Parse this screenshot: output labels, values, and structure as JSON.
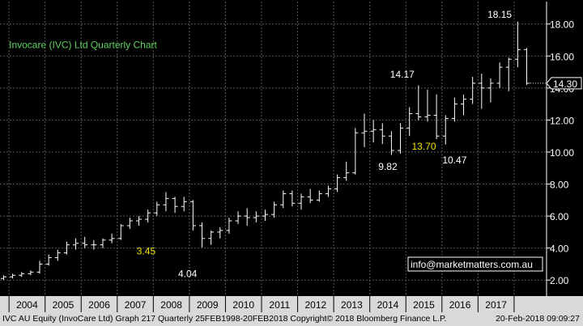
{
  "chart_data": {
    "type": "ohlc",
    "title": "Invocare (IVC) Ltd Quarterly Chart",
    "ylim": [
      1.0,
      19.4
    ],
    "xlim": [
      2003.25,
      2018.4
    ],
    "yticks": [
      2.0,
      4.0,
      6.0,
      8.0,
      10.0,
      12.0,
      14.0,
      16.0,
      18.0
    ],
    "ytick_labels": [
      "2.00",
      "4.00",
      "6.00",
      "8.00",
      "10.00",
      "12.00",
      "14.00",
      "16.00",
      "18.00"
    ],
    "year_labels": [
      "2004",
      "2005",
      "2006",
      "2007",
      "2008",
      "2009",
      "2010",
      "2011",
      "2012",
      "2013",
      "2014",
      "2015",
      "2016",
      "2017"
    ],
    "year_label_x": [
      2004,
      2005,
      2006,
      2007,
      2008,
      2009,
      2010,
      2011,
      2012,
      2013,
      2014,
      2015,
      2016,
      2017
    ],
    "grid": true,
    "series": [
      {
        "bars": [
          {
            "x": 2003.35,
            "o": 2.1,
            "h": 2.3,
            "l": 2.0,
            "c": 2.2
          },
          {
            "x": 2003.6,
            "o": 2.2,
            "h": 2.4,
            "l": 2.1,
            "c": 2.3
          },
          {
            "x": 2003.85,
            "o": 2.3,
            "h": 2.5,
            "l": 2.2,
            "c": 2.4
          },
          {
            "x": 2004.1,
            "o": 2.4,
            "h": 2.6,
            "l": 2.3,
            "c": 2.5
          },
          {
            "x": 2004.35,
            "o": 2.5,
            "h": 3.2,
            "l": 2.4,
            "c": 3.0
          },
          {
            "x": 2004.6,
            "o": 3.0,
            "h": 3.6,
            "l": 2.9,
            "c": 3.4
          },
          {
            "x": 2004.85,
            "o": 3.4,
            "h": 3.9,
            "l": 3.2,
            "c": 3.7
          },
          {
            "x": 2005.1,
            "o": 3.7,
            "h": 4.4,
            "l": 3.6,
            "c": 4.2
          },
          {
            "x": 2005.35,
            "o": 4.2,
            "h": 4.6,
            "l": 3.9,
            "c": 4.3
          },
          {
            "x": 2005.6,
            "o": 4.3,
            "h": 4.7,
            "l": 4.0,
            "c": 4.2
          },
          {
            "x": 2005.85,
            "o": 4.2,
            "h": 4.5,
            "l": 3.9,
            "c": 4.2
          },
          {
            "x": 2006.1,
            "o": 4.2,
            "h": 4.6,
            "l": 4.0,
            "c": 4.5
          },
          {
            "x": 2006.35,
            "o": 4.5,
            "h": 4.9,
            "l": 4.3,
            "c": 4.6
          },
          {
            "x": 2006.6,
            "o": 4.6,
            "h": 5.5,
            "l": 4.5,
            "c": 5.4
          },
          {
            "x": 2006.85,
            "o": 5.4,
            "h": 5.9,
            "l": 5.2,
            "c": 5.7
          },
          {
            "x": 2007.1,
            "o": 5.7,
            "h": 6.0,
            "l": 5.4,
            "c": 5.8
          },
          {
            "x": 2007.35,
            "o": 5.8,
            "h": 6.4,
            "l": 5.6,
            "c": 6.2
          },
          {
            "x": 2007.6,
            "o": 6.2,
            "h": 6.9,
            "l": 6.0,
            "c": 6.7
          },
          {
            "x": 2007.85,
            "o": 6.7,
            "h": 7.5,
            "l": 6.3,
            "c": 7.1
          },
          {
            "x": 2008.1,
            "o": 7.1,
            "h": 7.2,
            "l": 6.2,
            "c": 6.6
          },
          {
            "x": 2008.35,
            "o": 6.6,
            "h": 7.2,
            "l": 6.3,
            "c": 6.9
          },
          {
            "x": 2008.6,
            "o": 6.9,
            "h": 7.0,
            "l": 5.1,
            "c": 5.4
          },
          {
            "x": 2008.85,
            "o": 5.4,
            "h": 5.6,
            "l": 4.04,
            "c": 4.6
          },
          {
            "x": 2009.1,
            "o": 4.6,
            "h": 5.1,
            "l": 4.2,
            "c": 5.0
          },
          {
            "x": 2009.35,
            "o": 5.0,
            "h": 5.3,
            "l": 4.6,
            "c": 5.1
          },
          {
            "x": 2009.6,
            "o": 5.1,
            "h": 5.9,
            "l": 4.9,
            "c": 5.7
          },
          {
            "x": 2009.85,
            "o": 5.7,
            "h": 6.3,
            "l": 5.5,
            "c": 6.0
          },
          {
            "x": 2010.1,
            "o": 6.0,
            "h": 6.5,
            "l": 5.4,
            "c": 5.9
          },
          {
            "x": 2010.35,
            "o": 5.9,
            "h": 6.3,
            "l": 5.6,
            "c": 6.0
          },
          {
            "x": 2010.6,
            "o": 6.0,
            "h": 6.4,
            "l": 5.7,
            "c": 6.1
          },
          {
            "x": 2010.85,
            "o": 6.1,
            "h": 6.9,
            "l": 5.9,
            "c": 6.7
          },
          {
            "x": 2011.1,
            "o": 6.7,
            "h": 7.6,
            "l": 6.5,
            "c": 7.4
          },
          {
            "x": 2011.35,
            "o": 7.4,
            "h": 7.6,
            "l": 6.6,
            "c": 6.8
          },
          {
            "x": 2011.6,
            "o": 6.8,
            "h": 7.4,
            "l": 6.4,
            "c": 7.2
          },
          {
            "x": 2011.85,
            "o": 7.2,
            "h": 7.7,
            "l": 6.8,
            "c": 7.0
          },
          {
            "x": 2012.1,
            "o": 7.0,
            "h": 7.6,
            "l": 6.9,
            "c": 7.4
          },
          {
            "x": 2012.35,
            "o": 7.4,
            "h": 7.9,
            "l": 7.2,
            "c": 7.7
          },
          {
            "x": 2012.6,
            "o": 7.7,
            "h": 8.6,
            "l": 7.5,
            "c": 8.4
          },
          {
            "x": 2012.85,
            "o": 8.4,
            "h": 9.4,
            "l": 8.2,
            "c": 8.7
          },
          {
            "x": 2013.1,
            "o": 8.7,
            "h": 11.5,
            "l": 8.6,
            "c": 11.2
          },
          {
            "x": 2013.35,
            "o": 11.2,
            "h": 12.4,
            "l": 10.3,
            "c": 11.3
          },
          {
            "x": 2013.6,
            "o": 11.3,
            "h": 12.0,
            "l": 10.6,
            "c": 11.4
          },
          {
            "x": 2013.85,
            "o": 11.4,
            "h": 11.8,
            "l": 10.5,
            "c": 11.0
          },
          {
            "x": 2014.1,
            "o": 11.0,
            "h": 11.3,
            "l": 9.82,
            "c": 10.1
          },
          {
            "x": 2014.35,
            "o": 10.1,
            "h": 11.8,
            "l": 9.9,
            "c": 11.5
          },
          {
            "x": 2014.6,
            "o": 11.5,
            "h": 12.8,
            "l": 11.0,
            "c": 12.4
          },
          {
            "x": 2014.85,
            "o": 12.4,
            "h": 14.17,
            "l": 12.0,
            "c": 12.2
          },
          {
            "x": 2015.1,
            "o": 12.2,
            "h": 13.9,
            "l": 11.9,
            "c": 12.3
          },
          {
            "x": 2015.35,
            "o": 12.3,
            "h": 13.6,
            "l": 10.8,
            "c": 11.0
          },
          {
            "x": 2015.6,
            "o": 11.0,
            "h": 12.3,
            "l": 10.47,
            "c": 12.1
          },
          {
            "x": 2015.85,
            "o": 12.1,
            "h": 13.4,
            "l": 11.9,
            "c": 13.0
          },
          {
            "x": 2016.1,
            "o": 13.0,
            "h": 13.6,
            "l": 12.3,
            "c": 13.3
          },
          {
            "x": 2016.35,
            "o": 13.3,
            "h": 14.7,
            "l": 13.0,
            "c": 14.3
          },
          {
            "x": 2016.6,
            "o": 14.3,
            "h": 14.9,
            "l": 12.7,
            "c": 14.0
          },
          {
            "x": 2016.85,
            "o": 14.0,
            "h": 14.6,
            "l": 13.1,
            "c": 14.3
          },
          {
            "x": 2017.1,
            "o": 14.3,
            "h": 15.6,
            "l": 14.0,
            "c": 15.3
          },
          {
            "x": 2017.35,
            "o": 15.3,
            "h": 15.9,
            "l": 13.8,
            "c": 15.8
          },
          {
            "x": 2017.6,
            "o": 15.8,
            "h": 18.15,
            "l": 15.3,
            "c": 16.4
          },
          {
            "x": 2017.85,
            "o": 16.4,
            "h": 16.5,
            "l": 14.2,
            "c": 14.3
          }
        ]
      }
    ],
    "annotations": [
      {
        "text": "18.15",
        "x": 2017.1,
        "y": 18.6,
        "color": "#ffffff"
      },
      {
        "text": "14.17",
        "x": 2014.4,
        "y": 14.85,
        "color": "#ffffff"
      },
      {
        "text": "13.70",
        "x": 2015.0,
        "y": 10.35,
        "color": "#f2e200"
      },
      {
        "text": "9.82",
        "x": 2014.0,
        "y": 9.1,
        "color": "#ffffff"
      },
      {
        "text": "10.47",
        "x": 2015.85,
        "y": 9.5,
        "color": "#ffffff"
      },
      {
        "text": "3.45",
        "x": 2007.3,
        "y": 3.8,
        "color": "#f2e200"
      },
      {
        "text": "4.04",
        "x": 2008.45,
        "y": 2.4,
        "color": "#ffffff"
      }
    ],
    "last_value": "14.30",
    "last_value_y": 14.3
  },
  "watermark": "info@marketmatters.com.au",
  "footer": {
    "left": "IVC AU Equity (InvoCare Ltd) Graph 217  Quarterly 25FEB1998-20FEB2018 Copyright© 2018 Bloomberg Finance L.P.",
    "right": "20-Feb-2018 09:09:27"
  },
  "colors": {
    "background": "#000000",
    "grid": "#5a5a5a",
    "bars": "#ffffff",
    "title": "#5fd35f",
    "axis_text": "#ffffff",
    "highlight": "#f2e200",
    "footer_bg": "#d9d9d9"
  }
}
